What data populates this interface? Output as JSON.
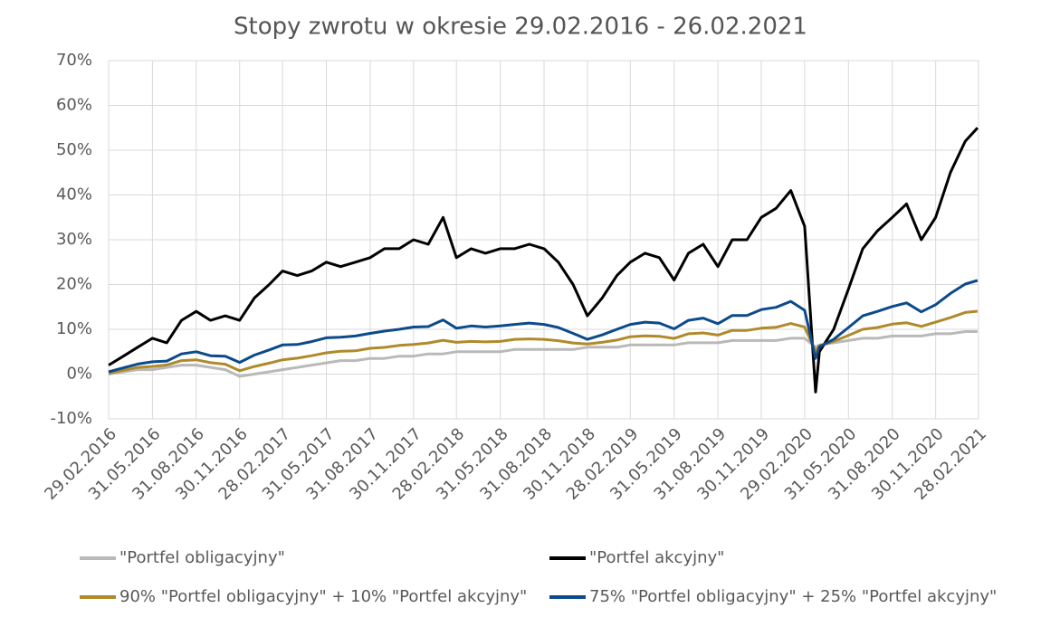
{
  "chart_data": {
    "type": "line",
    "title": "Stopy zwrotu w okresie 29.02.2016 - 26.02.2021",
    "x": [
      "29.02.2016",
      "31.03.2016",
      "30.04.2016",
      "31.05.2016",
      "30.06.2016",
      "31.07.2016",
      "31.08.2016",
      "30.09.2016",
      "31.10.2016",
      "30.11.2016",
      "31.12.2016",
      "31.01.2017",
      "28.02.2017",
      "31.03.2017",
      "30.04.2017",
      "31.05.2017",
      "30.06.2017",
      "31.07.2017",
      "31.08.2017",
      "30.09.2017",
      "31.10.2017",
      "30.11.2017",
      "31.12.2017",
      "31.01.2018",
      "28.02.2018",
      "31.03.2018",
      "30.04.2018",
      "31.05.2018",
      "30.06.2018",
      "31.07.2018",
      "31.08.2018",
      "30.09.2018",
      "31.10.2018",
      "30.11.2018",
      "31.12.2018",
      "31.01.2019",
      "28.02.2019",
      "31.03.2019",
      "30.04.2019",
      "31.05.2019",
      "30.06.2019",
      "31.07.2019",
      "31.08.2019",
      "30.09.2019",
      "31.10.2019",
      "30.11.2019",
      "31.12.2019",
      "31.01.2020",
      "29.02.2020",
      "23.03.2020",
      "31.03.2020",
      "30.04.2020",
      "31.05.2020",
      "30.06.2020",
      "31.07.2020",
      "31.08.2020",
      "30.09.2020",
      "31.10.2020",
      "30.11.2020",
      "31.12.2020",
      "31.01.2021",
      "26.02.2021"
    ],
    "series": [
      {
        "name": "\"Portfel obligacyjny\"",
        "color": "#b9b9b9",
        "values": [
          0,
          0.5,
          1,
          1,
          1.5,
          2,
          2,
          1.5,
          1,
          -0.5,
          0,
          0.5,
          1,
          1.5,
          2,
          2.5,
          3,
          3,
          3.5,
          3.5,
          4,
          4,
          4.5,
          4.5,
          5,
          5,
          5,
          5,
          5.5,
          5.5,
          5.5,
          5.5,
          5.5,
          6,
          6,
          6,
          6.5,
          6.5,
          6.5,
          6.5,
          7,
          7,
          7,
          7.5,
          7.5,
          7.5,
          7.5,
          8,
          8,
          6,
          6.5,
          7,
          7.5,
          8,
          8,
          8.5,
          8.5,
          8.5,
          9,
          9,
          9.5,
          9.5
        ]
      },
      {
        "name": "\"Portfel akcyjny\"",
        "color": "#000000",
        "values": [
          2,
          4,
          6,
          8,
          7,
          12,
          14,
          12,
          13,
          12,
          17,
          20,
          23,
          22,
          23,
          25,
          24,
          25,
          26,
          28,
          28,
          30,
          29,
          35,
          26,
          28,
          27,
          28,
          28,
          29,
          28,
          25,
          20,
          13,
          17,
          22,
          25,
          27,
          26,
          21,
          27,
          29,
          24,
          30,
          30,
          35,
          37,
          41,
          33,
          -4,
          5,
          10,
          19,
          28,
          32,
          35,
          38,
          30,
          35,
          45,
          52,
          55
        ]
      },
      {
        "name": "90% \"Portfel obligacyjny\" + 10% \"Portfel akcyjny\"",
        "color": "#b08a2a",
        "values": [
          0.2,
          0.85,
          1.5,
          1.7,
          2.05,
          3.0,
          3.2,
          2.55,
          2.2,
          0.75,
          1.7,
          2.45,
          3.2,
          3.55,
          4.1,
          4.75,
          5.1,
          5.2,
          5.75,
          5.95,
          6.4,
          6.6,
          6.95,
          7.55,
          7.1,
          7.3,
          7.2,
          7.3,
          7.75,
          7.85,
          7.75,
          7.45,
          6.95,
          6.7,
          7.1,
          7.6,
          8.35,
          8.55,
          8.45,
          7.95,
          9.0,
          9.2,
          8.7,
          9.75,
          9.75,
          10.25,
          10.45,
          11.3,
          10.5,
          5.0,
          6.35,
          7.3,
          8.65,
          10.0,
          10.4,
          11.15,
          11.45,
          10.65,
          11.6,
          12.6,
          13.75,
          14.05
        ]
      },
      {
        "name": "75% \"Portfel obligacyjny\" + 25% \"Portfel akcyjny\"",
        "color": "#0b4a8b",
        "values": [
          0.5,
          1.4,
          2.25,
          2.75,
          2.9,
          4.5,
          5.0,
          4.1,
          4.0,
          2.6,
          4.25,
          5.4,
          6.5,
          6.6,
          7.25,
          8.1,
          8.25,
          8.5,
          9.1,
          9.6,
          10.0,
          10.5,
          10.6,
          12.1,
          10.25,
          10.75,
          10.5,
          10.75,
          11.1,
          11.4,
          11.1,
          10.4,
          9.1,
          7.75,
          8.75,
          10.0,
          11.1,
          11.6,
          11.4,
          10.1,
          12.0,
          12.5,
          11.25,
          13.1,
          13.1,
          14.4,
          14.9,
          16.25,
          14.25,
          3.5,
          6.1,
          7.75,
          10.4,
          13.0,
          14.0,
          15.1,
          15.9,
          13.9,
          15.5,
          18.0,
          20.1,
          20.9
        ]
      }
    ],
    "xlim": [
      "29.02.2016",
      "28.02.2021"
    ],
    "xticks": [
      "29.02.2016",
      "31.05.2016",
      "31.08.2016",
      "30.11.2016",
      "28.02.2017",
      "31.05.2017",
      "31.08.2017",
      "30.11.2017",
      "28.02.2018",
      "31.05.2018",
      "31.08.2018",
      "30.11.2018",
      "28.02.2019",
      "31.05.2019",
      "31.08.2019",
      "30.11.2019",
      "29.02.2020",
      "31.05.2020",
      "31.08.2020",
      "30.11.2020",
      "28.02.2021"
    ],
    "ylim": [
      -10,
      70
    ],
    "yticks": [
      {
        "value": -10,
        "label": "-10%"
      },
      {
        "value": 0,
        "label": "0%"
      },
      {
        "value": 10,
        "label": "10%"
      },
      {
        "value": 20,
        "label": "20%"
      },
      {
        "value": 30,
        "label": "30%"
      },
      {
        "value": 40,
        "label": "40%"
      },
      {
        "value": 50,
        "label": "50%"
      },
      {
        "value": 60,
        "label": "60%"
      },
      {
        "value": 70,
        "label": "70%"
      }
    ],
    "grid": true,
    "legend": "bottom"
  }
}
